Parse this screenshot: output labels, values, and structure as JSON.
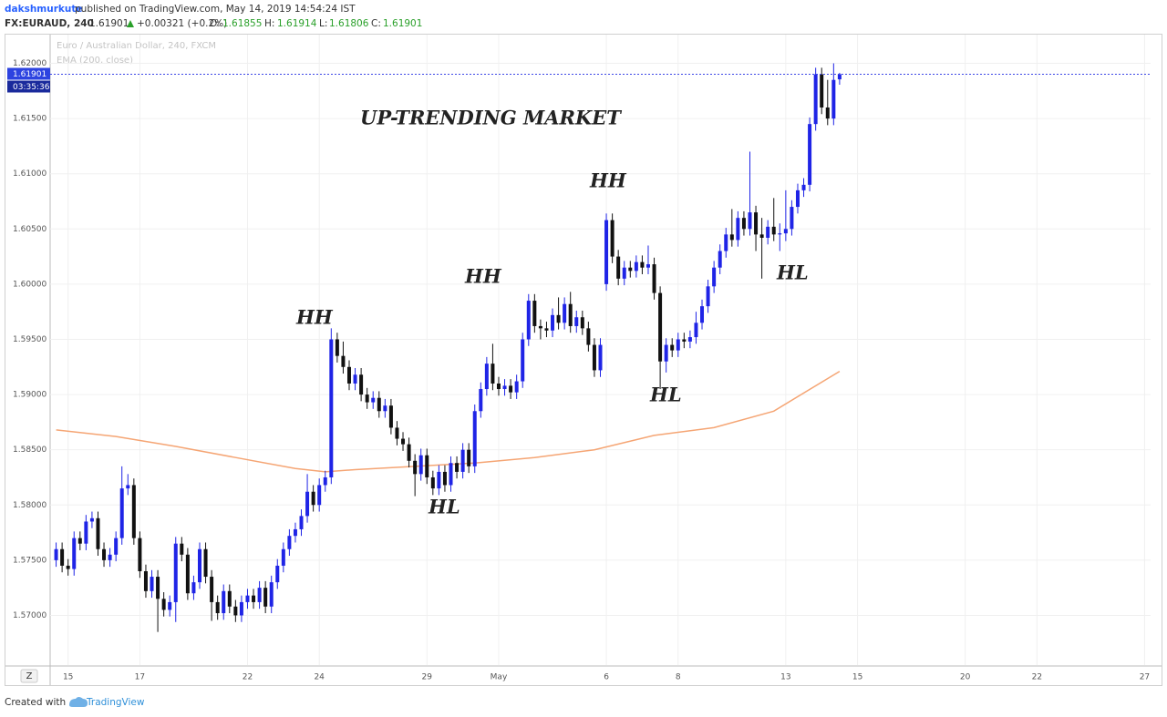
{
  "header": {
    "author": "dakshmurkute",
    "published": "published on TradingView.com, May 14, 2019 14:54:24 IST",
    "symbol": "FX:EURAUD, 240",
    "change": "+0.00321 (+0.2%)",
    "o_label": "O:",
    "h_label": "H:",
    "l_label": "L:",
    "c_label": "C:"
  },
  "footer": {
    "created": "Created with",
    "brand": "TradingView"
  },
  "zoom_button": "Z",
  "chart_data": {
    "type": "candlestick",
    "legend": [
      "Euro / Australian Dollar, 240, FXCM",
      "EMA (200, close)"
    ],
    "title": "UP-TRENDING MARKET",
    "annotations": [
      "HH",
      "HH",
      "HH",
      "HL",
      "HL",
      "HL"
    ],
    "countdown": "03:35:36",
    "up_color": "#1f24e6",
    "down_color": "#111111",
    "ema_color": "#f5a574",
    "price_line_color": "#3c46e6",
    "grid": true,
    "ylim": [
      1.5655,
      1.6226
    ],
    "yticks": [
      {
        "value": 1.57,
        "label": "1.57000"
      },
      {
        "value": 1.575,
        "label": "1.57500"
      },
      {
        "value": 1.58,
        "label": "1.58000"
      },
      {
        "value": 1.585,
        "label": "1.58500"
      },
      {
        "value": 1.59,
        "label": "1.59000"
      },
      {
        "value": 1.595,
        "label": "1.59500"
      },
      {
        "value": 1.6,
        "label": "1.60000"
      },
      {
        "value": 1.605,
        "label": "1.60500"
      },
      {
        "value": 1.61,
        "label": "1.61000"
      },
      {
        "value": 1.615,
        "label": "1.61500"
      },
      {
        "value": 1.62,
        "label": "1.62000"
      }
    ],
    "xlim": [
      -1,
      183
    ],
    "xticks": [
      {
        "value": 2,
        "label": "15"
      },
      {
        "value": 14,
        "label": "17"
      },
      {
        "value": 32,
        "label": "22"
      },
      {
        "value": 44,
        "label": "24"
      },
      {
        "value": 62,
        "label": "29"
      },
      {
        "value": 74,
        "label": "May"
      },
      {
        "value": 92,
        "label": "6"
      },
      {
        "value": 104,
        "label": "8"
      },
      {
        "value": 122,
        "label": "13"
      },
      {
        "value": 134,
        "label": "15"
      },
      {
        "value": 152,
        "label": "20"
      },
      {
        "value": 164,
        "label": "22"
      },
      {
        "value": 182,
        "label": "27"
      }
    ],
    "ohlc": [
      [
        1.575,
        1.5766,
        1.5744,
        1.576
      ],
      [
        1.576,
        1.5766,
        1.5739,
        1.5745
      ],
      [
        1.5745,
        1.5751,
        1.5736,
        1.5742
      ],
      [
        1.5742,
        1.5776,
        1.5736,
        1.577
      ],
      [
        1.577,
        1.5776,
        1.5759,
        1.5765
      ],
      [
        1.5765,
        1.5791,
        1.5759,
        1.5785
      ],
      [
        1.5785,
        1.5794,
        1.5779,
        1.5788
      ],
      [
        1.5788,
        1.5794,
        1.5754,
        1.576
      ],
      [
        1.576,
        1.5766,
        1.5744,
        1.575
      ],
      [
        1.575,
        1.5761,
        1.5744,
        1.5755
      ],
      [
        1.5755,
        1.5776,
        1.5749,
        1.577
      ],
      [
        1.577,
        1.5835,
        1.5764,
        1.5815
      ],
      [
        1.5815,
        1.5828,
        1.5809,
        1.5818
      ],
      [
        1.5818,
        1.5824,
        1.5764,
        1.577
      ],
      [
        1.577,
        1.5776,
        1.5734,
        1.574
      ],
      [
        1.574,
        1.5746,
        1.5716,
        1.5722
      ],
      [
        1.5722,
        1.5741,
        1.5716,
        1.5735
      ],
      [
        1.5735,
        1.5741,
        1.5685,
        1.5715
      ],
      [
        1.5715,
        1.5721,
        1.5699,
        1.5705
      ],
      [
        1.5705,
        1.5718,
        1.5699,
        1.5712
      ],
      [
        1.5712,
        1.5771,
        1.5694,
        1.5765
      ],
      [
        1.5765,
        1.5771,
        1.5749,
        1.5755
      ],
      [
        1.5755,
        1.5761,
        1.5714,
        1.572
      ],
      [
        1.572,
        1.5736,
        1.5714,
        1.573
      ],
      [
        1.573,
        1.5766,
        1.5724,
        1.576
      ],
      [
        1.576,
        1.5766,
        1.5729,
        1.5735
      ],
      [
        1.5735,
        1.5741,
        1.5695,
        1.5712
      ],
      [
        1.5712,
        1.5718,
        1.5696,
        1.5702
      ],
      [
        1.5702,
        1.5728,
        1.5696,
        1.5722
      ],
      [
        1.5722,
        1.5728,
        1.5702,
        1.5708
      ],
      [
        1.5708,
        1.5714,
        1.5694,
        1.57
      ],
      [
        1.57,
        1.5718,
        1.5694,
        1.5712
      ],
      [
        1.5712,
        1.5724,
        1.5706,
        1.5718
      ],
      [
        1.5718,
        1.5724,
        1.5706,
        1.5712
      ],
      [
        1.5712,
        1.5731,
        1.5706,
        1.5725
      ],
      [
        1.5725,
        1.5731,
        1.5702,
        1.5708
      ],
      [
        1.5708,
        1.5736,
        1.5702,
        1.573
      ],
      [
        1.573,
        1.5751,
        1.5724,
        1.5745
      ],
      [
        1.5745,
        1.5766,
        1.5739,
        1.576
      ],
      [
        1.576,
        1.5778,
        1.5754,
        1.5772
      ],
      [
        1.5772,
        1.5784,
        1.5766,
        1.5778
      ],
      [
        1.5778,
        1.5796,
        1.5772,
        1.579
      ],
      [
        1.579,
        1.5828,
        1.5784,
        1.5812
      ],
      [
        1.5812,
        1.5818,
        1.5794,
        1.58
      ],
      [
        1.58,
        1.5824,
        1.5794,
        1.5818
      ],
      [
        1.5818,
        1.5831,
        1.5812,
        1.5825
      ],
      [
        1.5825,
        1.596,
        1.5819,
        1.595
      ],
      [
        1.595,
        1.5956,
        1.5929,
        1.5935
      ],
      [
        1.5935,
        1.5948,
        1.5919,
        1.5925
      ],
      [
        1.5925,
        1.5931,
        1.5904,
        1.591
      ],
      [
        1.591,
        1.5924,
        1.5904,
        1.5918
      ],
      [
        1.5918,
        1.5924,
        1.5894,
        1.59
      ],
      [
        1.59,
        1.5906,
        1.5887,
        1.5893
      ],
      [
        1.5893,
        1.5903,
        1.5887,
        1.5897
      ],
      [
        1.5897,
        1.5903,
        1.5879,
        1.5885
      ],
      [
        1.5885,
        1.5896,
        1.5879,
        1.589
      ],
      [
        1.589,
        1.5896,
        1.5864,
        1.587
      ],
      [
        1.587,
        1.5876,
        1.5854,
        1.586
      ],
      [
        1.586,
        1.5866,
        1.5849,
        1.5855
      ],
      [
        1.5855,
        1.5861,
        1.5834,
        1.584
      ],
      [
        1.584,
        1.5846,
        1.5808,
        1.5828
      ],
      [
        1.5828,
        1.5851,
        1.5822,
        1.5845
      ],
      [
        1.5845,
        1.5851,
        1.5819,
        1.5825
      ],
      [
        1.5825,
        1.5831,
        1.5809,
        1.5815
      ],
      [
        1.5815,
        1.5836,
        1.5809,
        1.583
      ],
      [
        1.583,
        1.5836,
        1.5812,
        1.5818
      ],
      [
        1.5818,
        1.5844,
        1.5812,
        1.5838
      ],
      [
        1.5838,
        1.5844,
        1.5824,
        1.583
      ],
      [
        1.583,
        1.5856,
        1.5824,
        1.585
      ],
      [
        1.585,
        1.5856,
        1.5829,
        1.5835
      ],
      [
        1.5835,
        1.5891,
        1.5829,
        1.5885
      ],
      [
        1.5885,
        1.5911,
        1.5879,
        1.5905
      ],
      [
        1.5905,
        1.5934,
        1.5899,
        1.5928
      ],
      [
        1.5928,
        1.5946,
        1.5904,
        1.591
      ],
      [
        1.591,
        1.5916,
        1.5899,
        1.5905
      ],
      [
        1.5905,
        1.5914,
        1.5899,
        1.5908
      ],
      [
        1.5908,
        1.5914,
        1.5896,
        1.5902
      ],
      [
        1.5902,
        1.5918,
        1.5896,
        1.5912
      ],
      [
        1.5912,
        1.5956,
        1.5906,
        1.595
      ],
      [
        1.595,
        1.5991,
        1.5944,
        1.5985
      ],
      [
        1.5985,
        1.5991,
        1.5956,
        1.5962
      ],
      [
        1.5962,
        1.5968,
        1.595,
        1.596
      ],
      [
        1.596,
        1.5966,
        1.5952,
        1.5958
      ],
      [
        1.5958,
        1.5978,
        1.5952,
        1.5972
      ],
      [
        1.5972,
        1.5988,
        1.5959,
        1.5965
      ],
      [
        1.5965,
        1.5988,
        1.5959,
        1.5982
      ],
      [
        1.5982,
        1.5993,
        1.5956,
        1.5962
      ],
      [
        1.5962,
        1.5976,
        1.5956,
        1.597
      ],
      [
        1.597,
        1.5976,
        1.5954,
        1.596
      ],
      [
        1.596,
        1.5966,
        1.5939,
        1.5945
      ],
      [
        1.5945,
        1.5951,
        1.5916,
        1.5922
      ],
      [
        1.5922,
        1.5951,
        1.5916,
        1.5945
      ],
      [
        1.6,
        1.6064,
        1.5994,
        1.6058
      ],
      [
        1.6058,
        1.6064,
        1.6019,
        1.6025
      ],
      [
        1.6025,
        1.6031,
        1.5999,
        1.6005
      ],
      [
        1.6005,
        1.6021,
        1.5999,
        1.6015
      ],
      [
        1.6015,
        1.6021,
        1.6006,
        1.6012
      ],
      [
        1.6012,
        1.6026,
        1.6006,
        1.602
      ],
      [
        1.602,
        1.6026,
        1.6009,
        1.6015
      ],
      [
        1.6015,
        1.6035,
        1.6009,
        1.6018
      ],
      [
        1.6018,
        1.6024,
        1.5986,
        1.5992
      ],
      [
        1.5992,
        1.5998,
        1.5905,
        1.593
      ],
      [
        1.593,
        1.5951,
        1.592,
        1.5945
      ],
      [
        1.5945,
        1.5951,
        1.5934,
        1.594
      ],
      [
        1.594,
        1.5956,
        1.5934,
        1.595
      ],
      [
        1.595,
        1.5956,
        1.5942,
        1.5948
      ],
      [
        1.5948,
        1.5958,
        1.5942,
        1.5952
      ],
      [
        1.5952,
        1.5975,
        1.5946,
        1.5965
      ],
      [
        1.5965,
        1.5986,
        1.5959,
        1.598
      ],
      [
        1.598,
        1.6004,
        1.5974,
        1.5998
      ],
      [
        1.5998,
        1.6021,
        1.5992,
        1.6015
      ],
      [
        1.6015,
        1.6036,
        1.6009,
        1.603
      ],
      [
        1.603,
        1.6051,
        1.6024,
        1.6045
      ],
      [
        1.6045,
        1.6068,
        1.6034,
        1.604
      ],
      [
        1.604,
        1.6066,
        1.6034,
        1.606
      ],
      [
        1.606,
        1.6066,
        1.6044,
        1.605
      ],
      [
        1.605,
        1.612,
        1.6044,
        1.6065
      ],
      [
        1.6065,
        1.6071,
        1.603,
        1.6045
      ],
      [
        1.6045,
        1.606,
        1.6005,
        1.6042
      ],
      [
        1.6042,
        1.6058,
        1.6036,
        1.6052
      ],
      [
        1.6052,
        1.6078,
        1.6039,
        1.6045
      ],
      [
        1.6045,
        1.6055,
        1.603,
        1.6046
      ],
      [
        1.6046,
        1.6085,
        1.6039,
        1.605
      ],
      [
        1.605,
        1.6076,
        1.6044,
        1.607
      ],
      [
        1.607,
        1.6091,
        1.6064,
        1.6085
      ],
      [
        1.6085,
        1.6096,
        1.6079,
        1.609
      ],
      [
        1.609,
        1.6151,
        1.6084,
        1.6145
      ],
      [
        1.6145,
        1.6196,
        1.6139,
        1.619
      ],
      [
        1.619,
        1.6196,
        1.6154,
        1.616
      ],
      [
        1.616,
        1.6185,
        1.6144,
        1.615
      ],
      [
        1.615,
        1.62,
        1.6144,
        1.6185
      ],
      [
        1.61855,
        1.61914,
        1.61806,
        1.61901
      ]
    ],
    "ema": {
      "name": "EMA (200, close)",
      "x": [
        0,
        10,
        20,
        30,
        40,
        45,
        50,
        60,
        70,
        80,
        90,
        100,
        110,
        120,
        131
      ],
      "values": [
        1.5868,
        1.5862,
        1.5853,
        1.5843,
        1.5833,
        1.583,
        1.5832,
        1.5835,
        1.5838,
        1.5843,
        1.585,
        1.5863,
        1.587,
        1.5885,
        1.5921
      ]
    }
  }
}
